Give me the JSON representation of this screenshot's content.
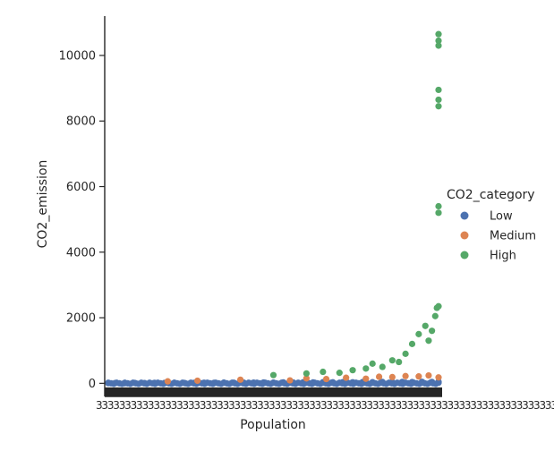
{
  "chart_data": {
    "type": "scatter",
    "xlabel": "Population",
    "ylabel": "CO2_emission",
    "ylim": [
      -400,
      11200
    ],
    "y_ticks": [
      0,
      2000,
      4000,
      6000,
      8000,
      10000
    ],
    "x_tick_note": "Categorical x-axis with hundreds of overlapping tick labels rendered as a dense black band",
    "x_range": [
      0,
      1
    ],
    "grid": false,
    "legend": {
      "title": "CO2_category",
      "placement": "right",
      "entries": [
        {
          "name": "Low",
          "color": "#4c72b0"
        },
        {
          "name": "Medium",
          "color": "#dd8452"
        },
        {
          "name": "High",
          "color": "#55a868"
        }
      ]
    },
    "series": [
      {
        "name": "Low",
        "color": "#4c72b0",
        "points": [
          [
            0.0,
            5
          ],
          [
            0.02,
            8
          ],
          [
            0.05,
            3
          ],
          [
            0.08,
            10
          ],
          [
            0.11,
            6
          ],
          [
            0.14,
            12
          ],
          [
            0.17,
            9
          ],
          [
            0.2,
            15
          ],
          [
            0.23,
            11
          ],
          [
            0.26,
            14
          ],
          [
            0.29,
            18
          ],
          [
            0.32,
            13
          ],
          [
            0.35,
            20
          ],
          [
            0.38,
            16
          ],
          [
            0.41,
            22
          ],
          [
            0.44,
            19
          ],
          [
            0.47,
            25
          ],
          [
            0.5,
            21
          ],
          [
            0.53,
            28
          ],
          [
            0.56,
            24
          ],
          [
            0.59,
            30
          ],
          [
            0.62,
            26
          ],
          [
            0.65,
            33
          ],
          [
            0.68,
            29
          ],
          [
            0.71,
            35
          ],
          [
            0.74,
            31
          ],
          [
            0.77,
            38
          ],
          [
            0.8,
            34
          ],
          [
            0.83,
            40
          ],
          [
            0.86,
            36
          ],
          [
            0.89,
            42
          ],
          [
            0.92,
            38
          ],
          [
            0.95,
            45
          ],
          [
            0.98,
            41
          ],
          [
            1.0,
            48
          ]
        ]
      },
      {
        "name": "Medium",
        "color": "#dd8452",
        "points": [
          [
            0.18,
            60
          ],
          [
            0.27,
            80
          ],
          [
            0.4,
            110
          ],
          [
            0.55,
            90
          ],
          [
            0.6,
            150
          ],
          [
            0.66,
            130
          ],
          [
            0.72,
            170
          ],
          [
            0.78,
            140
          ],
          [
            0.82,
            200
          ],
          [
            0.86,
            190
          ],
          [
            0.9,
            220
          ],
          [
            0.94,
            210
          ],
          [
            0.97,
            240
          ],
          [
            1.0,
            180
          ]
        ]
      },
      {
        "name": "High",
        "color": "#55a868",
        "points": [
          [
            0.5,
            250
          ],
          [
            0.6,
            300
          ],
          [
            0.65,
            350
          ],
          [
            0.7,
            320
          ],
          [
            0.74,
            400
          ],
          [
            0.78,
            450
          ],
          [
            0.8,
            600
          ],
          [
            0.83,
            500
          ],
          [
            0.86,
            700
          ],
          [
            0.88,
            650
          ],
          [
            0.9,
            900
          ],
          [
            0.92,
            1200
          ],
          [
            0.94,
            1500
          ],
          [
            0.96,
            1750
          ],
          [
            0.97,
            1300
          ],
          [
            0.98,
            1600
          ],
          [
            0.99,
            2050
          ],
          [
            0.995,
            2300
          ],
          [
            1.0,
            2350
          ],
          [
            1.0,
            5200
          ],
          [
            1.0,
            5400
          ],
          [
            1.0,
            8450
          ],
          [
            1.0,
            8650
          ],
          [
            1.0,
            8950
          ],
          [
            1.0,
            10300
          ],
          [
            1.0,
            10450
          ],
          [
            1.0,
            10650
          ]
        ]
      }
    ]
  }
}
